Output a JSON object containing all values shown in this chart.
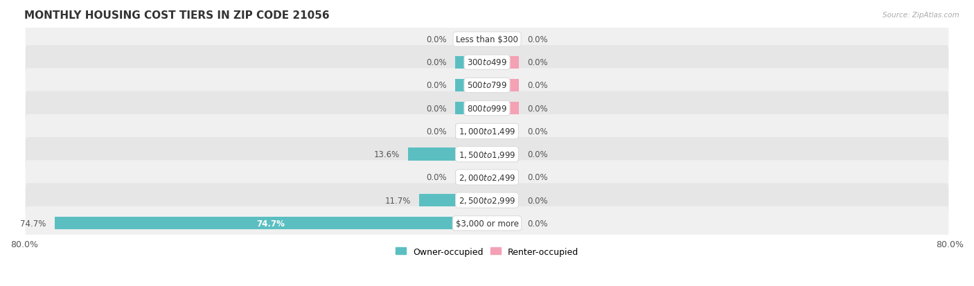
{
  "title": "MONTHLY HOUSING COST TIERS IN ZIP CODE 21056",
  "source": "Source: ZipAtlas.com",
  "categories": [
    "Less than $300",
    "$300 to $499",
    "$500 to $799",
    "$800 to $999",
    "$1,000 to $1,499",
    "$1,500 to $1,999",
    "$2,000 to $2,499",
    "$2,500 to $2,999",
    "$3,000 or more"
  ],
  "owner_values": [
    0.0,
    0.0,
    0.0,
    0.0,
    0.0,
    13.6,
    0.0,
    11.7,
    74.7
  ],
  "renter_values": [
    0.0,
    0.0,
    0.0,
    0.0,
    0.0,
    0.0,
    0.0,
    0.0,
    0.0
  ],
  "owner_color": "#5bbfc2",
  "renter_color": "#f4a0b5",
  "row_bg_color_odd": "#f0f0f0",
  "row_bg_color_even": "#e6e6e6",
  "x_min": -80.0,
  "x_max": 80.0,
  "bar_height": 0.55,
  "stub_size": 5.5,
  "title_fontsize": 11,
  "axis_fontsize": 9,
  "cat_fontsize": 8.5,
  "pct_fontsize": 8.5
}
